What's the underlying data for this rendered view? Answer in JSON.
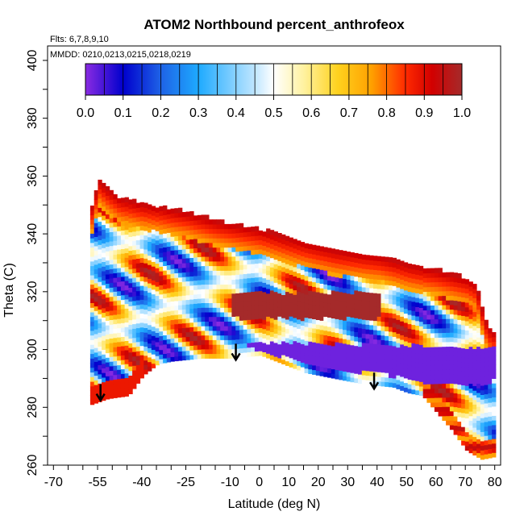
{
  "chart_data": {
    "type": "heatmap",
    "title": "ATOM2 Northbound percent_anthrofeox",
    "flights_note": "Flts: 6,7,8,9,10",
    "dates_note": "MMDD: 0210,0213,0215,0218,0219",
    "xlabel": "Latitude (deg N)",
    "ylabel": "Theta (C)",
    "xlim": [
      -72,
      82
    ],
    "ylim": [
      260,
      405
    ],
    "x_ticks": [
      "-70",
      "-55",
      "-40",
      "-25",
      "-10",
      "0",
      "10",
      "20",
      "30",
      "40",
      "50",
      "60",
      "70",
      "80"
    ],
    "x_tick_values": [
      -70,
      -55,
      -40,
      -25,
      -10,
      0,
      10,
      20,
      30,
      40,
      50,
      60,
      70,
      80
    ],
    "x_minor_step": 5,
    "y_ticks": [
      "260",
      "280",
      "300",
      "320",
      "340",
      "360",
      "380",
      "400"
    ],
    "y_tick_values": [
      260,
      280,
      300,
      320,
      340,
      360,
      380,
      400
    ],
    "colorbar": {
      "ticks": [
        "0.0",
        "0.1",
        "0.2",
        "0.3",
        "0.4",
        "0.5",
        "0.6",
        "0.7",
        "0.8",
        "0.9",
        "1.0"
      ],
      "tick_values": [
        0,
        0.1,
        0.2,
        0.3,
        0.4,
        0.5,
        0.6,
        0.7,
        0.8,
        0.9,
        1.0
      ],
      "colors": [
        "#8a2be2",
        "#0000cd",
        "#1e62e6",
        "#1eaaff",
        "#bfe6ff",
        "#ffffff",
        "#fff2a0",
        "#ffd21e",
        "#ffa000",
        "#ff2a00",
        "#d20000",
        "#a52a2a"
      ],
      "stops": [
        0,
        0.1,
        0.2,
        0.3,
        0.45,
        0.5,
        0.58,
        0.67,
        0.76,
        0.85,
        0.92,
        1.0
      ]
    },
    "arrows_lat": [
      -54,
      -8,
      39
    ],
    "arrows_theta": [
      288,
      302,
      292
    ],
    "domain": {
      "top_boundary": [
        [
          -57.5,
          349
        ],
        [
          -55,
          358
        ],
        [
          -52,
          355
        ],
        [
          -48,
          352
        ],
        [
          -40,
          350
        ],
        [
          -25,
          347
        ],
        [
          -15,
          344
        ],
        [
          0,
          341
        ],
        [
          10,
          338
        ],
        [
          25,
          334
        ],
        [
          40,
          332
        ],
        [
          50,
          329
        ],
        [
          60,
          327
        ],
        [
          70,
          324
        ],
        [
          73,
          322
        ],
        [
          74,
          318
        ],
        [
          76,
          310
        ],
        [
          78,
          306
        ],
        [
          80,
          305
        ]
      ],
      "bottom_boundary": [
        [
          -57.5,
          281
        ],
        [
          -52,
          283
        ],
        [
          -45,
          284
        ],
        [
          -40,
          291
        ],
        [
          -35,
          295
        ],
        [
          -30,
          296
        ],
        [
          -20,
          297
        ],
        [
          -10,
          297
        ],
        [
          0,
          298
        ],
        [
          5,
          296
        ],
        [
          10,
          294
        ],
        [
          15,
          292
        ],
        [
          25,
          290
        ],
        [
          35,
          288
        ],
        [
          45,
          287
        ],
        [
          50,
          285
        ],
        [
          55,
          284
        ],
        [
          60,
          278
        ],
        [
          65,
          272
        ],
        [
          70,
          265
        ],
        [
          75,
          262
        ],
        [
          80,
          263
        ]
      ],
      "deep_purple_band": [
        [
          [
            -5,
            300
          ],
          [
            10,
            296
          ],
          [
            25,
            292
          ],
          [
            40,
            291
          ],
          [
            55,
            288
          ],
          [
            75,
            287
          ],
          [
            80,
            289
          ],
          [
            80,
            300
          ],
          [
            -5,
            302
          ]
        ]
      ],
      "dark_red_band_theta": [
        310,
        319
      ],
      "dark_red_band_lat": [
        -10,
        40
      ]
    }
  }
}
